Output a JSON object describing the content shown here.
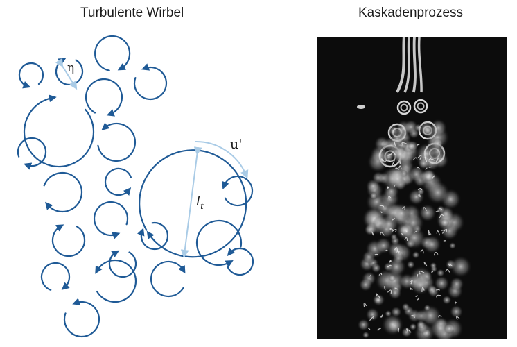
{
  "titles": {
    "left": "Turbulente Wirbel",
    "right": "Kaskadenprozess"
  },
  "symbols": {
    "eta": "η",
    "velocity": "u'",
    "length_base": "l",
    "length_sub": "t"
  },
  "colors": {
    "eddy": "#1f5a96",
    "annotation": "#a9cbe6",
    "photo_bg": "#0c0c0c",
    "smoke": "#d9d9d9"
  }
}
